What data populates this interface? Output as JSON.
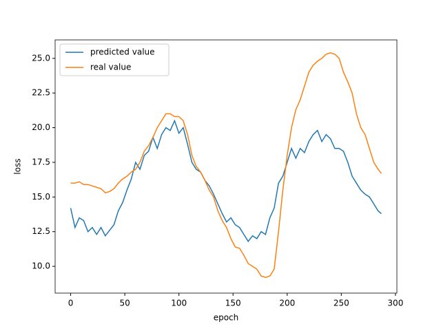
{
  "chart_data": {
    "type": "line",
    "xlabel": "epoch",
    "ylabel": "loss",
    "x": [
      0,
      4,
      8,
      12,
      16,
      20,
      24,
      28,
      32,
      36,
      40,
      44,
      48,
      52,
      56,
      60,
      64,
      68,
      72,
      76,
      80,
      84,
      88,
      92,
      96,
      100,
      104,
      108,
      112,
      116,
      120,
      124,
      128,
      132,
      136,
      140,
      144,
      148,
      152,
      156,
      160,
      164,
      168,
      172,
      176,
      180,
      184,
      188,
      192,
      196,
      200,
      204,
      208,
      212,
      216,
      220,
      224,
      228,
      232,
      236,
      240,
      244,
      248,
      252,
      256,
      260,
      264,
      268,
      272,
      276,
      280,
      284,
      287
    ],
    "series": [
      {
        "name": "predicted value",
        "color": "#1f77b4",
        "values": [
          14.2,
          12.8,
          13.5,
          13.3,
          12.5,
          12.8,
          12.3,
          12.8,
          12.2,
          12.6,
          13.0,
          14.0,
          14.6,
          15.5,
          16.3,
          17.5,
          17.0,
          18.0,
          18.3,
          19.3,
          18.5,
          19.5,
          20.0,
          19.8,
          20.5,
          19.6,
          20.0,
          18.8,
          17.5,
          17.0,
          16.8,
          16.2,
          15.8,
          15.2,
          14.5,
          13.8,
          13.2,
          13.5,
          13.0,
          12.8,
          12.3,
          11.8,
          12.2,
          12.0,
          12.5,
          12.3,
          13.5,
          14.2,
          16.0,
          16.5,
          17.5,
          18.5,
          17.8,
          18.5,
          18.2,
          19.0,
          19.5,
          19.8,
          19.0,
          19.5,
          19.2,
          18.5,
          18.5,
          18.3,
          17.5,
          16.5,
          16.0,
          15.5,
          15.2,
          15.0,
          14.5,
          14.0,
          13.8
        ]
      },
      {
        "name": "real value",
        "color": "#ff7f0e",
        "values": [
          16.0,
          16.0,
          16.1,
          15.9,
          15.9,
          15.8,
          15.7,
          15.6,
          15.3,
          15.4,
          15.6,
          16.0,
          16.3,
          16.5,
          16.8,
          17.0,
          17.5,
          18.3,
          18.7,
          19.3,
          20.0,
          20.5,
          21.0,
          21.0,
          20.8,
          20.8,
          20.5,
          19.5,
          18.0,
          17.2,
          16.8,
          16.2,
          15.5,
          15.0,
          14.0,
          13.3,
          12.8,
          12.0,
          11.4,
          11.3,
          10.8,
          10.2,
          10.0,
          9.8,
          9.3,
          9.2,
          9.3,
          9.8,
          12.5,
          15.5,
          18.0,
          20.0,
          21.3,
          22.0,
          23.0,
          24.0,
          24.5,
          24.8,
          25.0,
          25.3,
          25.4,
          25.3,
          25.0,
          24.0,
          23.3,
          22.5,
          21.0,
          20.0,
          19.5,
          18.5,
          17.5,
          17.0,
          16.7
        ]
      }
    ],
    "xlim": [
      -14.35,
      301.35
    ],
    "xticks": [
      0,
      50,
      100,
      150,
      200,
      250,
      300
    ],
    "ylim": [
      8.07,
      26.33
    ],
    "yticks": [
      {
        "value": 10,
        "label": "10.0"
      },
      12.5,
      {
        "value": 15,
        "label": "15.0"
      },
      17.5,
      {
        "value": 20,
        "label": "20.0"
      },
      22.5,
      {
        "value": 25,
        "label": "25.0"
      }
    ],
    "legend": "upper left"
  }
}
